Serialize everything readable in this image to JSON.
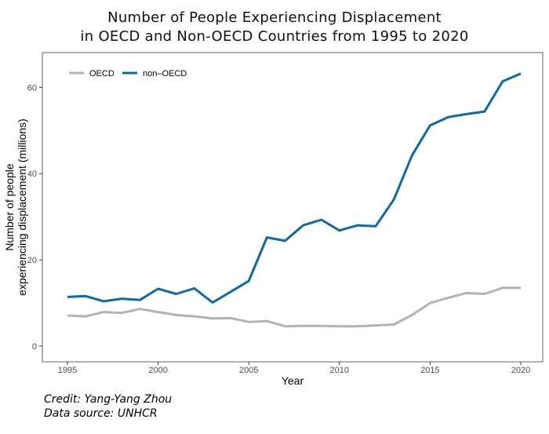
{
  "title_line1": "Number of People Experiencing Displacement",
  "title_line2": "in OECD and Non-OECD Countries from 1995 to 2020",
  "credit": "Credit: Yang-Yang Zhou",
  "source": "Data source: UNHCR",
  "chart_data": {
    "type": "line",
    "xlabel": "Year",
    "ylabel_line1": "Number of people",
    "ylabel_line2": "experiencing displacement (millions)",
    "xlim": [
      1995,
      2020
    ],
    "ylim": [
      0,
      63
    ],
    "x_ticks": [
      1995,
      2000,
      2005,
      2010,
      2015,
      2020
    ],
    "y_ticks": [
      0,
      20,
      40,
      60
    ],
    "grid": false,
    "legend_position": "top-left",
    "x": [
      1995,
      1996,
      1997,
      1998,
      1999,
      2000,
      2001,
      2002,
      2003,
      2004,
      2005,
      2006,
      2007,
      2008,
      2009,
      2010,
      2011,
      2012,
      2013,
      2014,
      2015,
      2016,
      2017,
      2018,
      2019,
      2020
    ],
    "series": [
      {
        "name": "OECD",
        "color": "#b3b3b3",
        "values": [
          7.1,
          6.9,
          7.9,
          7.7,
          8.6,
          7.9,
          7.2,
          6.9,
          6.4,
          6.5,
          5.6,
          5.8,
          4.6,
          4.7,
          4.7,
          4.6,
          4.6,
          4.8,
          5.0,
          7.2,
          10.0,
          11.2,
          12.3,
          12.1,
          13.5,
          13.5
        ]
      },
      {
        "name": "non–OECD",
        "color": "#0b6aa8",
        "values": [
          11.4,
          11.6,
          10.4,
          11.0,
          10.7,
          13.3,
          12.1,
          13.4,
          10.1,
          12.6,
          15.1,
          25.2,
          24.4,
          28.0,
          29.3,
          26.8,
          28.0,
          27.8,
          34.0,
          44.2,
          51.2,
          53.1,
          53.8,
          54.4,
          61.4,
          63.2
        ]
      }
    ]
  }
}
